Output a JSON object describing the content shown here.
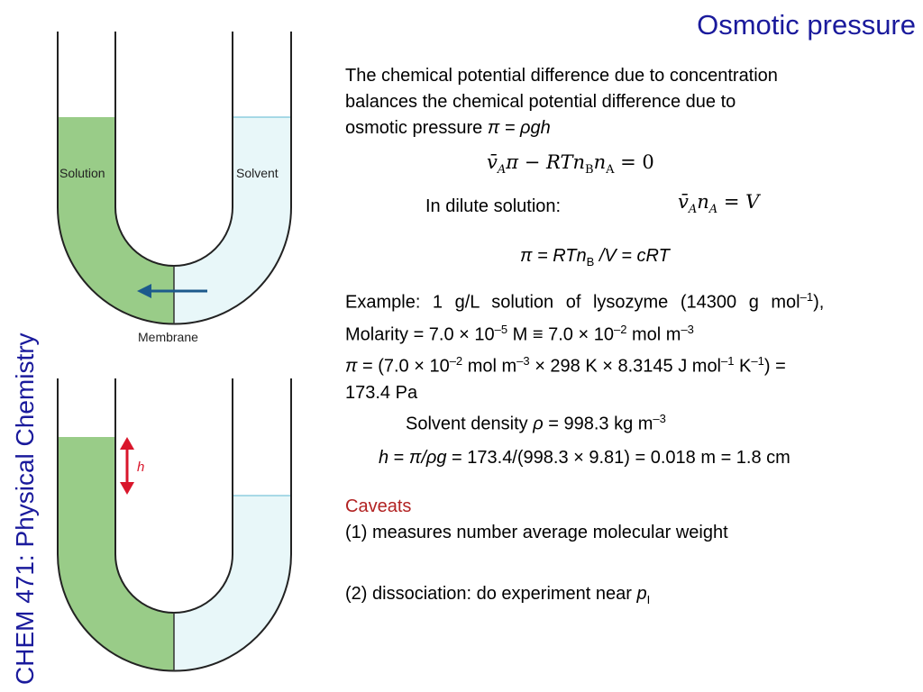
{
  "title": "Osmotic pressure",
  "side_label": "CHEM 471: Physical Chemistry",
  "diagram": {
    "solution_label": "Solution",
    "solvent_label": "Solvent",
    "membrane_label": "Membrane",
    "height_label": "h",
    "colors": {
      "solution": "#99cc88",
      "solvent": "#e8f7f9",
      "arrow": "#1c5a8c",
      "height_arrow": "#d9162b"
    }
  },
  "intro": {
    "line1": "The chemical potential difference due to concentration",
    "line2": "balances the chemical potential difference due to",
    "line3_pre": "osmotic pressure ",
    "line3_eq": "π = ρgh"
  },
  "eq1": {
    "v": "v̄",
    "A": "A",
    "mid": "π − RTn",
    "B": "B",
    "n": "n",
    "A2": "A",
    "rhs": " = 0"
  },
  "dilute_label": "In dilute solution:",
  "eq2": {
    "v": "v̄",
    "A": "A",
    "n": "n",
    "A2": "A",
    "rhs": " = V"
  },
  "eq3": {
    "pre": "π = RTn",
    "sub": "B",
    "post": " /V = cRT"
  },
  "example": {
    "line1_text": "Example: 1 g/L solution of lysozyme (14300 g mol",
    "line1_sup": "–1",
    "line1_end": "),",
    "line2_a": "Molarity = 7.0 × 10",
    "line2_sup1": "–5",
    "line2_b": " M ≡ 7.0 × 10",
    "line2_sup2": "–2",
    "line2_c": " mol m",
    "line2_sup3": "–3",
    "line3_a": "π",
    "line3_b": " = (7.0 × 10",
    "line3_sup1": "–2",
    "line3_c": " mol m",
    "line3_sup2": "–3",
    "line3_d": " × 298 K × 8.3145 J mol",
    "line3_sup3": "–1",
    "line3_e": " K",
    "line3_sup4": "–1",
    "line3_f": ") =",
    "line4": "173.4 Pa"
  },
  "density": {
    "pre": "Solvent density ",
    "rho": "ρ",
    "post": " = 998.3 kg m",
    "sup": "–3"
  },
  "height_eq": {
    "h": "h",
    "eq": " = ",
    "pi": "π/ρg",
    "rest": " = 173.4/(998.3 × 9.81) = 0.018 m = 1.8 cm"
  },
  "caveats": {
    "heading": "Caveats",
    "item1": "(1) measures number average molecular weight",
    "item2_pre": "(2) dissociation: do experiment near ",
    "item2_p": "p",
    "item2_sub": "I"
  }
}
